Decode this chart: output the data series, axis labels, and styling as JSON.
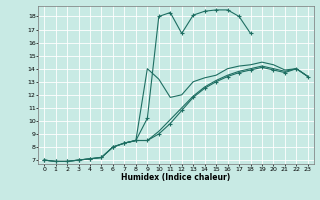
{
  "xlabel": "Humidex (Indice chaleur)",
  "xlim": [
    -0.5,
    23.5
  ],
  "ylim": [
    6.7,
    18.8
  ],
  "yticks": [
    7,
    8,
    9,
    10,
    11,
    12,
    13,
    14,
    15,
    16,
    17,
    18
  ],
  "xticks": [
    0,
    1,
    2,
    3,
    4,
    5,
    6,
    7,
    8,
    9,
    10,
    11,
    12,
    13,
    14,
    15,
    16,
    17,
    18,
    19,
    20,
    21,
    22,
    23
  ],
  "bg_color": "#c8eae4",
  "grid_color": "#ffffff",
  "line_color": "#1e6e62",
  "curve1_x": [
    0,
    1,
    2,
    3,
    4,
    5,
    6,
    7,
    8,
    9,
    10,
    11,
    12,
    13,
    14,
    15,
    16,
    17,
    18
  ],
  "curve1_y": [
    7.0,
    6.9,
    6.9,
    7.0,
    7.1,
    7.2,
    8.0,
    8.3,
    8.5,
    10.2,
    18.0,
    18.3,
    16.7,
    18.1,
    18.4,
    18.5,
    18.5,
    18.0,
    16.7
  ],
  "curve2_x": [
    0,
    1,
    2,
    3,
    4,
    5,
    6,
    7,
    8,
    9,
    10,
    11,
    12,
    13,
    14,
    15,
    16,
    17,
    18,
    19,
    20,
    21,
    22,
    23
  ],
  "curve2_y": [
    7.0,
    6.9,
    6.9,
    7.0,
    7.1,
    7.2,
    8.0,
    8.3,
    8.5,
    8.5,
    9.0,
    9.8,
    10.8,
    11.8,
    12.5,
    13.0,
    13.4,
    13.7,
    13.9,
    14.1,
    13.9,
    13.7,
    14.0,
    13.4
  ],
  "curve3_x": [
    0,
    1,
    2,
    3,
    4,
    5,
    6,
    7,
    8,
    9,
    10,
    11,
    12,
    13,
    14,
    15,
    16,
    17,
    18,
    19,
    20,
    21,
    22,
    23
  ],
  "curve3_y": [
    7.0,
    6.9,
    6.9,
    7.0,
    7.1,
    7.2,
    8.0,
    8.3,
    8.5,
    8.5,
    9.2,
    10.1,
    11.0,
    11.9,
    12.6,
    13.1,
    13.5,
    13.8,
    14.0,
    14.2,
    14.0,
    13.8,
    14.0,
    13.4
  ],
  "curve4_x": [
    7,
    8,
    9,
    10,
    11,
    12,
    13,
    14,
    15,
    16,
    17,
    18,
    19,
    20,
    21,
    22,
    23
  ],
  "curve4_y": [
    8.3,
    8.5,
    14.0,
    13.2,
    11.8,
    12.0,
    13.0,
    13.3,
    13.5,
    14.0,
    14.2,
    14.3,
    14.5,
    14.3,
    13.9,
    14.0,
    13.4
  ]
}
